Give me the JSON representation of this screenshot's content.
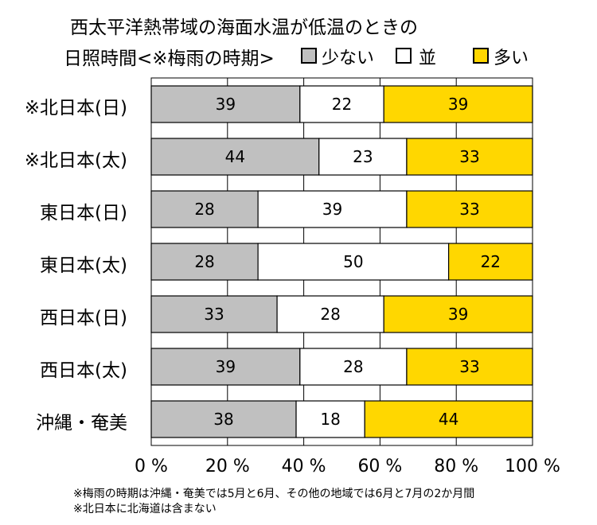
{
  "title_line1": "西太平洋熱帯域の海面水温が低温のときの",
  "title_line2": "日照時間<※梅雨の時期>",
  "chart_data": {
    "type": "bar",
    "orientation": "horizontal",
    "stacking": "percent",
    "categories": [
      "※北日本(日)",
      "※北日本(太)",
      "東日本(日)",
      "東日本(太)",
      "西日本(日)",
      "西日本(太)",
      "沖縄・奄美"
    ],
    "series": [
      {
        "name": "少ない",
        "color": "#c0c0c0",
        "values": [
          39,
          44,
          28,
          28,
          33,
          39,
          38
        ]
      },
      {
        "name": "並",
        "color": "#ffffff",
        "values": [
          22,
          23,
          39,
          50,
          28,
          28,
          18
        ]
      },
      {
        "name": "多い",
        "color": "#ffd700",
        "values": [
          39,
          33,
          33,
          22,
          39,
          33,
          44
        ]
      }
    ],
    "xlim": [
      0,
      100
    ],
    "xticks": [
      "0 %",
      "20 %",
      "40 %",
      "60 %",
      "80 %",
      "100 %"
    ],
    "grid": true,
    "legend_position": "top-right"
  },
  "notes": [
    "※梅雨の時期は沖縄・奄美では5月と6月、その他の地域では6月と7月の2か月間",
    "※北日本に北海道は含まない"
  ]
}
